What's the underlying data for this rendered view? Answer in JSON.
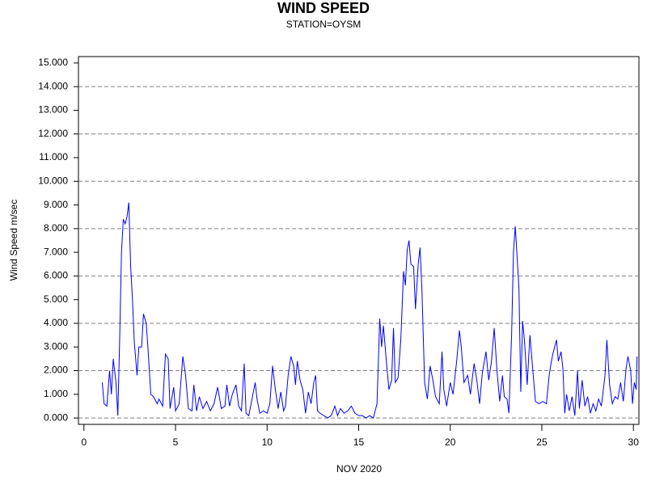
{
  "chart_data": {
    "type": "line",
    "title": "WIND SPEED",
    "subtitle": "STATION=OYSM",
    "x_label": "NOV 2020",
    "y_label": "Wind Speed m/sec",
    "color": "#0000ff",
    "grid": true,
    "xlim": [
      -0.3,
      30.3
    ],
    "ylim": [
      -0.27,
      15.27
    ],
    "xticks": [
      0,
      5,
      10,
      15,
      20,
      25,
      30
    ],
    "yticks": [
      {
        "value": 0,
        "label": "0.000"
      },
      {
        "value": 1,
        "label": "1.000"
      },
      {
        "value": 2,
        "label": "2.000"
      },
      {
        "value": 3,
        "label": "3.000"
      },
      {
        "value": 4,
        "label": "4.000"
      },
      {
        "value": 5,
        "label": "5.000"
      },
      {
        "value": 6,
        "label": "6.000"
      },
      {
        "value": 7,
        "label": "7.000"
      },
      {
        "value": 8,
        "label": "8.000"
      },
      {
        "value": 9,
        "label": "9.000"
      },
      {
        "value": 10,
        "label": "10.000"
      },
      {
        "value": 11,
        "label": "11.000"
      },
      {
        "value": 12,
        "label": "12.000"
      },
      {
        "value": 13,
        "label": "13.000"
      },
      {
        "value": 14,
        "label": "14.000"
      },
      {
        "value": 15,
        "label": "15.000"
      }
    ],
    "x": [
      1.0,
      1.1,
      1.25,
      1.4,
      1.5,
      1.6,
      1.75,
      1.85,
      1.95,
      2.05,
      2.15,
      2.25,
      2.35,
      2.45,
      2.55,
      2.65,
      2.75,
      2.9,
      3.0,
      3.15,
      3.25,
      3.4,
      3.5,
      3.65,
      3.8,
      4.0,
      4.1,
      4.3,
      4.45,
      4.6,
      4.7,
      4.9,
      5.0,
      5.2,
      5.4,
      5.55,
      5.7,
      5.9,
      6.0,
      6.15,
      6.3,
      6.5,
      6.7,
      6.9,
      7.1,
      7.3,
      7.5,
      7.7,
      7.8,
      7.95,
      8.1,
      8.3,
      8.45,
      8.6,
      8.75,
      8.85,
      9.0,
      9.2,
      9.35,
      9.45,
      9.6,
      9.8,
      10.0,
      10.15,
      10.3,
      10.45,
      10.6,
      10.75,
      10.9,
      11.0,
      11.15,
      11.3,
      11.45,
      11.55,
      11.65,
      11.8,
      11.95,
      12.1,
      12.25,
      12.4,
      12.55,
      12.65,
      12.75,
      12.9,
      13.1,
      13.3,
      13.5,
      13.7,
      13.85,
      14.0,
      14.2,
      14.4,
      14.6,
      14.8,
      15.0,
      15.2,
      15.4,
      15.6,
      15.8,
      16.0,
      16.15,
      16.25,
      16.35,
      16.5,
      16.65,
      16.8,
      16.9,
      17.0,
      17.15,
      17.3,
      17.45,
      17.55,
      17.65,
      17.75,
      17.85,
      18.0,
      18.1,
      18.25,
      18.35,
      18.45,
      18.6,
      18.75,
      18.9,
      19.05,
      19.2,
      19.4,
      19.55,
      19.65,
      19.8,
      20.0,
      20.15,
      20.35,
      20.5,
      20.6,
      20.75,
      20.95,
      21.1,
      21.3,
      21.45,
      21.6,
      21.75,
      21.95,
      22.1,
      22.25,
      22.4,
      22.55,
      22.7,
      22.85,
      22.95,
      23.1,
      23.2,
      23.35,
      23.45,
      23.55,
      23.65,
      23.75,
      23.85,
      23.95,
      24.05,
      24.2,
      24.35,
      24.5,
      24.65,
      24.85,
      25.05,
      25.25,
      25.4,
      25.5,
      25.6,
      25.8,
      25.9,
      26.05,
      26.15,
      26.25,
      26.35,
      26.5,
      26.65,
      26.8,
      26.95,
      27.05,
      27.2,
      27.35,
      27.5,
      27.65,
      27.8,
      27.95,
      28.1,
      28.25,
      28.45,
      28.55,
      28.7,
      28.85,
      29.0,
      29.15,
      29.3,
      29.45,
      29.6,
      29.7,
      29.85,
      29.95,
      30.05,
      30.15,
      30.2
    ],
    "values": [
      1.5,
      0.6,
      0.5,
      2.0,
      1.0,
      2.5,
      1.5,
      0.1,
      3.3,
      7.0,
      8.4,
      8.2,
      8.5,
      9.1,
      6.4,
      5.0,
      3.2,
      1.8,
      3.0,
      3.0,
      4.4,
      4.0,
      2.9,
      1.0,
      0.9,
      0.6,
      0.8,
      0.5,
      2.7,
      2.5,
      0.4,
      1.3,
      0.3,
      0.6,
      2.6,
      1.8,
      0.4,
      0.3,
      1.4,
      0.3,
      0.9,
      0.4,
      0.7,
      0.3,
      0.6,
      1.3,
      0.4,
      0.5,
      1.4,
      0.5,
      1.0,
      1.4,
      0.5,
      0.3,
      2.3,
      0.2,
      0.1,
      0.9,
      1.5,
      0.8,
      0.2,
      0.3,
      0.2,
      0.6,
      2.2,
      1.2,
      0.4,
      1.1,
      0.3,
      0.5,
      1.8,
      2.6,
      2.2,
      1.4,
      2.4,
      1.6,
      1.2,
      0.2,
      1.1,
      0.6,
      1.5,
      1.8,
      0.3,
      0.2,
      0.1,
      0.0,
      0.1,
      0.5,
      0.1,
      0.4,
      0.2,
      0.3,
      0.5,
      0.2,
      0.1,
      0.1,
      0.0,
      0.1,
      0.0,
      0.6,
      4.2,
      3.0,
      3.9,
      2.5,
      1.2,
      1.6,
      3.8,
      1.5,
      1.7,
      3.3,
      6.2,
      5.6,
      7.1,
      7.5,
      6.5,
      6.4,
      4.6,
      6.5,
      7.2,
      5.5,
      1.5,
      0.8,
      2.2,
      1.6,
      0.9,
      0.6,
      2.8,
      1.2,
      0.5,
      1.5,
      1.0,
      2.4,
      3.7,
      3.0,
      1.5,
      1.8,
      1.0,
      2.3,
      1.6,
      0.6,
      1.9,
      2.8,
      1.6,
      2.4,
      3.8,
      2.0,
      0.7,
      1.8,
      0.9,
      0.8,
      0.2,
      3.5,
      7.0,
      8.1,
      6.8,
      5.5,
      1.1,
      4.1,
      3.3,
      1.4,
      3.5,
      2.1,
      0.7,
      0.6,
      0.7,
      0.6,
      1.8,
      2.3,
      2.7,
      3.3,
      2.4,
      2.8,
      2.1,
      0.2,
      1.0,
      0.3,
      0.9,
      0.1,
      2.0,
      0.4,
      1.6,
      0.5,
      0.9,
      0.2,
      0.6,
      0.3,
      0.8,
      0.5,
      1.8,
      3.3,
      1.4,
      0.6,
      0.9,
      0.8,
      1.5,
      0.7,
      2.1,
      2.6,
      2.0,
      0.6,
      1.5,
      1.2,
      2.6
    ]
  }
}
